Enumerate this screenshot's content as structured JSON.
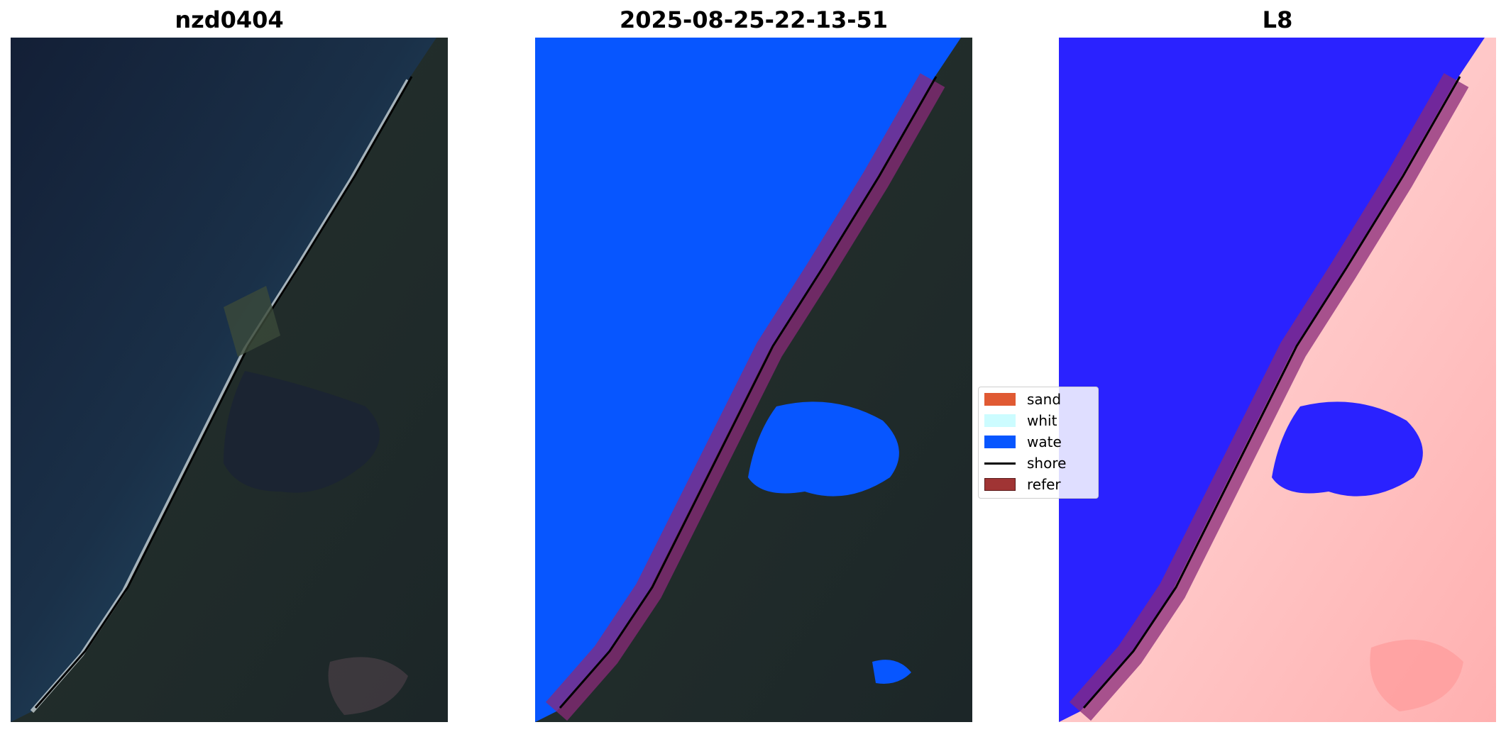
{
  "panels": [
    {
      "title": "nzd0404"
    },
    {
      "title": "2025-08-25-22-13-51"
    },
    {
      "title": "L8"
    }
  ],
  "legend": {
    "items": [
      {
        "label": "sand",
        "color": "#e05a33"
      },
      {
        "label": "whit",
        "color": "#ccfcff"
      },
      {
        "label": "wate",
        "color": "#0756ff"
      },
      {
        "label": "shore",
        "color": "#000000"
      },
      {
        "label": "refer",
        "color": "#a03434"
      }
    ]
  },
  "colors": {
    "ocean_dark": "#14213a",
    "ocean_teal": "#2e5a6a",
    "land_dark": "#1a2a2a",
    "water_class": "#0756ff",
    "reference_band": "#8a2a7a",
    "l8_water": "#2a22ff",
    "l8_land": "#ffd6d6"
  }
}
